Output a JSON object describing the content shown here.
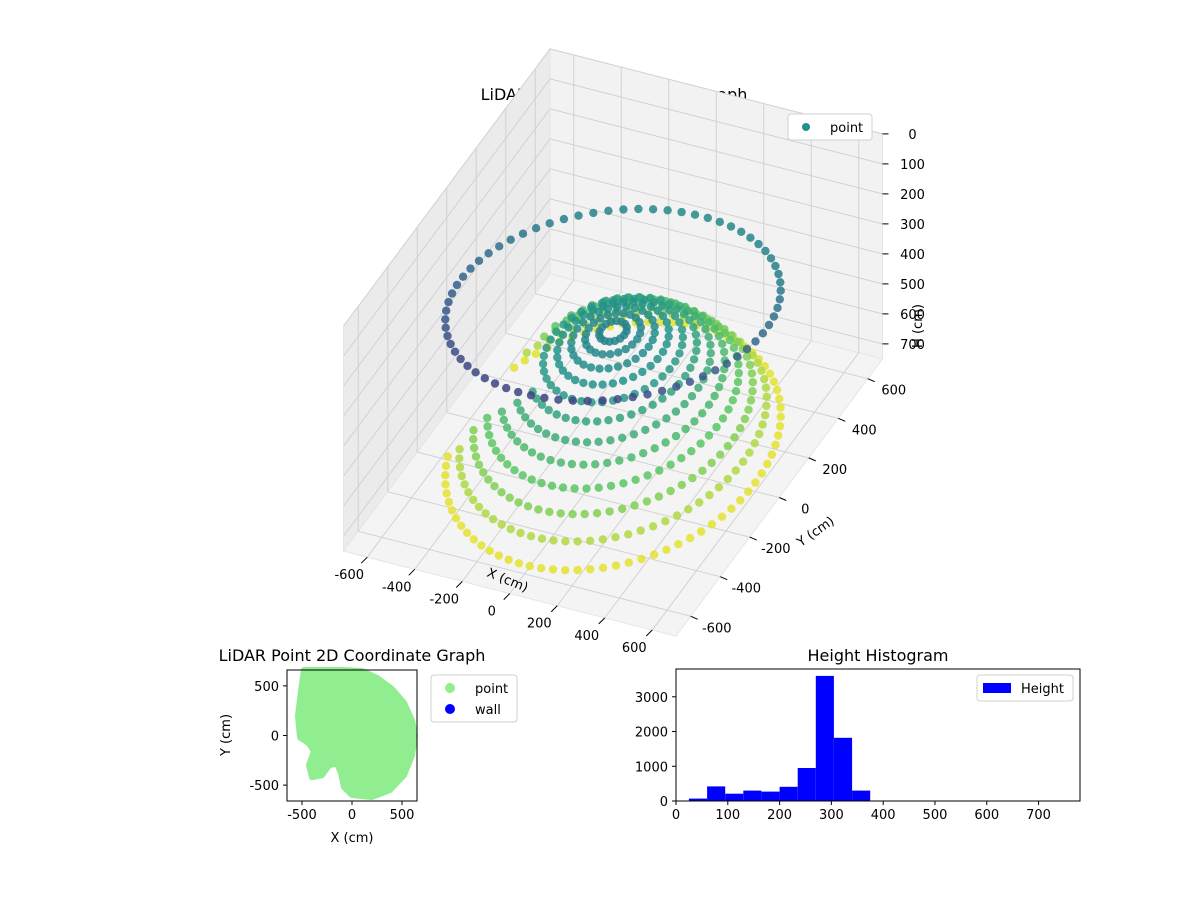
{
  "chart_data": [
    {
      "type": "scatter",
      "title": "LiDAR Point 3D Coordinate Graph",
      "projection": "3d",
      "xlabel": "X (cm)",
      "ylabel": "Y (cm)",
      "zlabel": "H (cm)",
      "x_ticks": [
        -600,
        -400,
        -200,
        0,
        200,
        400,
        600
      ],
      "y_ticks": [
        -600,
        -400,
        -200,
        0,
        200,
        400,
        600
      ],
      "z_ticks": [
        0,
        100,
        200,
        300,
        400,
        500,
        600,
        700
      ],
      "xlim": [
        -700,
        700
      ],
      "ylim": [
        -700,
        700
      ],
      "zlim": [
        0,
        750
      ],
      "z_inverted": true,
      "grid": true,
      "legend": {
        "placement": "top-right",
        "entries": [
          {
            "label": "point",
            "color": "#21918c"
          }
        ]
      },
      "colormap": "viridis",
      "point_cloud": {
        "description": "hemispherical bowl of points, radius ~600 cm, ring of points at rim, concave region toward -X",
        "radius": 600,
        "rim_height": 700,
        "center_height": 0
      }
    },
    {
      "type": "scatter",
      "title": "LiDAR Point 2D Coordinate Graph",
      "xlabel": "X (cm)",
      "ylabel": "Y (cm)",
      "x_ticks": [
        -500,
        0,
        500
      ],
      "y_ticks": [
        -500,
        0,
        500
      ],
      "xlim": [
        -650,
        650
      ],
      "ylim": [
        -660,
        660
      ],
      "grid": false,
      "legend": {
        "placement": "outside-right",
        "entries": [
          {
            "label": "point",
            "color": "#90ee90"
          },
          {
            "label": "wall",
            "color": "#0000ff"
          }
        ]
      },
      "series": [
        {
          "name": "point",
          "color": "#90ee90",
          "outline": [
            [
              -480,
              660
            ],
            [
              -300,
              660
            ],
            [
              -100,
              660
            ],
            [
              100,
              650
            ],
            [
              250,
              580
            ],
            [
              400,
              470
            ],
            [
              520,
              330
            ],
            [
              600,
              150
            ],
            [
              630,
              0
            ],
            [
              600,
              -200
            ],
            [
              520,
              -400
            ],
            [
              380,
              -550
            ],
            [
              200,
              -620
            ],
            [
              0,
              -600
            ],
            [
              -80,
              -520
            ],
            [
              -110,
              -380
            ],
            [
              -150,
              -280
            ],
            [
              -230,
              -300
            ],
            [
              -300,
              -400
            ],
            [
              -400,
              -420
            ],
            [
              -430,
              -300
            ],
            [
              -380,
              -160
            ],
            [
              -430,
              -80
            ],
            [
              -520,
              -20
            ],
            [
              -540,
              200
            ],
            [
              -510,
              450
            ]
          ]
        },
        {
          "name": "wall",
          "color": "#0000ff",
          "points": []
        }
      ]
    },
    {
      "type": "bar",
      "title": "Height Histogram",
      "xlabel": "",
      "ylabel": "",
      "x_ticks": [
        0,
        100,
        200,
        300,
        400,
        500,
        600,
        700
      ],
      "y_ticks": [
        0,
        1000,
        2000,
        3000
      ],
      "xlim": [
        0,
        780
      ],
      "ylim": [
        0,
        3800
      ],
      "grid": false,
      "legend": {
        "placement": "top-right",
        "entries": [
          {
            "label": "Height",
            "color": "#0000ff"
          }
        ]
      },
      "bin_edges": [
        25,
        60,
        95,
        130,
        165,
        200,
        235,
        270,
        305,
        340,
        375
      ],
      "series": [
        {
          "name": "Height",
          "color": "#0000ff",
          "values": [
            70,
            420,
            210,
            300,
            270,
            410,
            950,
            3600,
            1820,
            300
          ]
        }
      ]
    }
  ]
}
